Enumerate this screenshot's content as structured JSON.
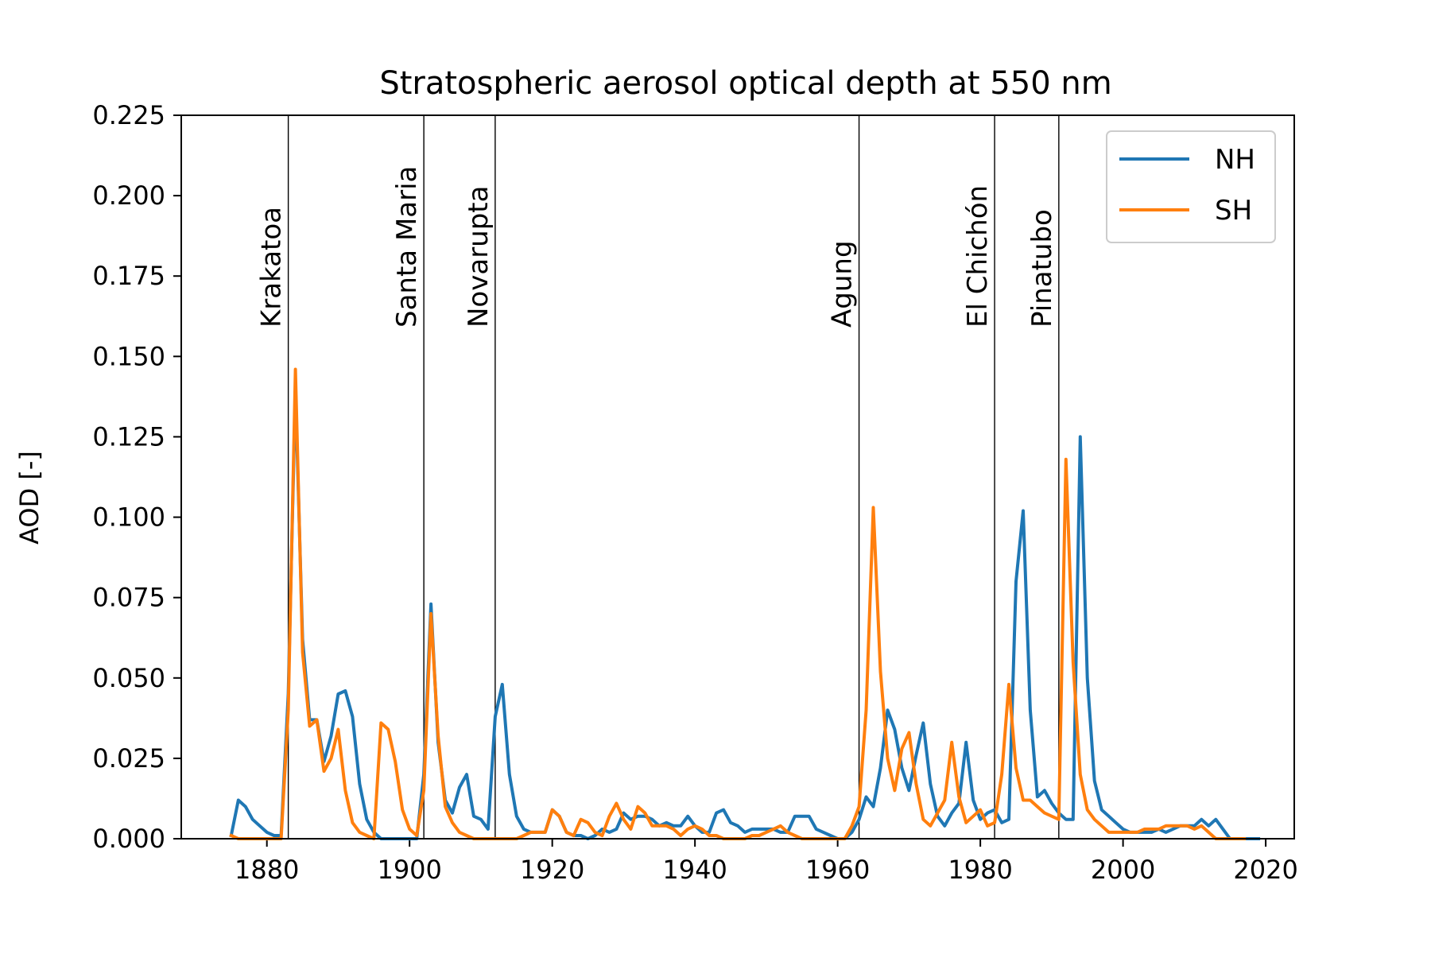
{
  "chart_data": {
    "type": "line",
    "title": "Stratospheric aerosol optical depth at 550 nm",
    "xlabel": "",
    "ylabel": "AOD [-]",
    "xlim": [
      1868,
      2024
    ],
    "ylim": [
      0,
      0.225
    ],
    "xticks": [
      "1880",
      "1900",
      "1920",
      "1940",
      "1960",
      "1980",
      "2000",
      "2020"
    ],
    "yticks": [
      "0.000",
      "0.025",
      "0.050",
      "0.075",
      "0.100",
      "0.125",
      "0.150",
      "0.175",
      "0.200",
      "0.225"
    ],
    "grid": false,
    "legend_position": "top-right",
    "eruptions": [
      {
        "name": "Krakatoa",
        "year": 1883
      },
      {
        "name": "Santa Maria",
        "year": 1902
      },
      {
        "name": "Novarupta",
        "year": 1912
      },
      {
        "name": "Agung",
        "year": 1963
      },
      {
        "name": "El Chichón",
        "year": 1982
      },
      {
        "name": "Pinatubo",
        "year": 1991
      }
    ],
    "x_start": 1875,
    "series": [
      {
        "name": "NH",
        "color": "#1f77b4",
        "values": [
          0.001,
          0.012,
          0.01,
          0.006,
          0.004,
          0.002,
          0.001,
          0.001,
          0.045,
          0.14,
          0.062,
          0.037,
          0.037,
          0.024,
          0.032,
          0.045,
          0.046,
          0.038,
          0.017,
          0.006,
          0.002,
          0.0,
          0.0,
          0.0,
          0.0,
          0.0,
          0.0,
          0.02,
          0.073,
          0.03,
          0.012,
          0.008,
          0.016,
          0.02,
          0.007,
          0.006,
          0.003,
          0.038,
          0.048,
          0.02,
          0.007,
          0.003,
          0.002,
          0.002,
          0.002,
          0.009,
          0.007,
          0.002,
          0.001,
          0.001,
          0.0,
          0.001,
          0.003,
          0.002,
          0.003,
          0.008,
          0.006,
          0.007,
          0.007,
          0.006,
          0.004,
          0.005,
          0.004,
          0.004,
          0.007,
          0.004,
          0.002,
          0.002,
          0.008,
          0.009,
          0.005,
          0.004,
          0.002,
          0.003,
          0.003,
          0.003,
          0.003,
          0.002,
          0.002,
          0.007,
          0.007,
          0.007,
          0.003,
          0.002,
          0.001,
          0.0,
          0.0,
          0.002,
          0.006,
          0.013,
          0.01,
          0.022,
          0.04,
          0.034,
          0.022,
          0.015,
          0.026,
          0.036,
          0.017,
          0.007,
          0.004,
          0.008,
          0.011,
          0.03,
          0.012,
          0.006,
          0.008,
          0.009,
          0.005,
          0.006,
          0.08,
          0.102,
          0.04,
          0.013,
          0.015,
          0.011,
          0.008,
          0.006,
          0.006,
          0.125,
          0.05,
          0.018,
          0.009,
          0.007,
          0.005,
          0.003,
          0.002,
          0.002,
          0.002,
          0.002,
          0.003,
          0.002,
          0.003,
          0.004,
          0.004,
          0.004,
          0.006,
          0.004,
          0.006,
          0.003,
          0.0,
          0.0,
          0.0,
          0.0,
          0.0
        ]
      },
      {
        "name": "SH",
        "color": "#ff7f0e",
        "values": [
          0.001,
          0.0,
          0.0,
          0.0,
          0.0,
          0.0,
          0.0,
          0.0,
          0.04,
          0.146,
          0.058,
          0.035,
          0.037,
          0.021,
          0.025,
          0.034,
          0.015,
          0.005,
          0.002,
          0.001,
          0.0,
          0.036,
          0.034,
          0.024,
          0.009,
          0.003,
          0.001,
          0.015,
          0.07,
          0.032,
          0.01,
          0.005,
          0.002,
          0.001,
          0.0,
          0.0,
          0.0,
          0.0,
          0.0,
          0.0,
          0.0,
          0.001,
          0.002,
          0.002,
          0.002,
          0.009,
          0.007,
          0.002,
          0.001,
          0.006,
          0.005,
          0.002,
          0.001,
          0.007,
          0.011,
          0.006,
          0.003,
          0.01,
          0.008,
          0.004,
          0.004,
          0.004,
          0.003,
          0.001,
          0.003,
          0.004,
          0.003,
          0.001,
          0.001,
          0.0,
          0.0,
          0.0,
          0.0,
          0.001,
          0.001,
          0.002,
          0.003,
          0.004,
          0.002,
          0.001,
          0.0,
          0.0,
          0.0,
          0.0,
          0.0,
          0.0,
          0.0,
          0.004,
          0.01,
          0.04,
          0.103,
          0.052,
          0.025,
          0.015,
          0.028,
          0.033,
          0.017,
          0.006,
          0.004,
          0.008,
          0.012,
          0.03,
          0.013,
          0.005,
          0.007,
          0.009,
          0.004,
          0.005,
          0.02,
          0.048,
          0.022,
          0.012,
          0.012,
          0.01,
          0.008,
          0.007,
          0.006,
          0.118,
          0.055,
          0.02,
          0.009,
          0.006,
          0.004,
          0.002,
          0.002,
          0.002,
          0.002,
          0.002,
          0.003,
          0.003,
          0.003,
          0.004,
          0.004,
          0.004,
          0.004,
          0.003,
          0.004,
          0.002,
          0.0,
          0.0,
          0.0,
          0.0,
          0.0
        ]
      }
    ]
  }
}
